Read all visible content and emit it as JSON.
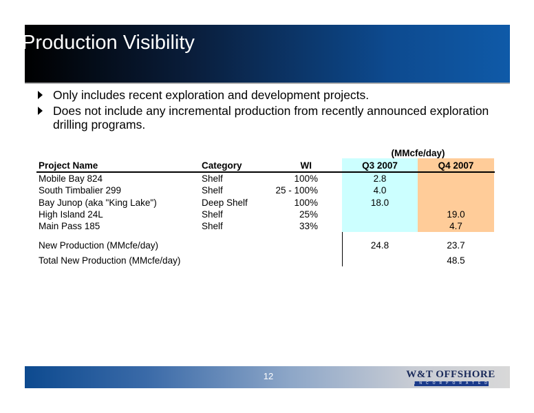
{
  "title": "Production Visibility",
  "bullets": [
    "Only includes recent exploration and development projects.",
    "Does not include any incremental production from recently announced exploration drilling programs."
  ],
  "table": {
    "unit_header": "(MMcfe/day)",
    "columns": [
      "Project Name",
      "Category",
      "WI",
      "Q3 2007",
      "Q4 2007"
    ],
    "rows": [
      {
        "name": "Mobile Bay 824",
        "category": "Shelf",
        "wi": "100%",
        "q3": "2.8",
        "q4": ""
      },
      {
        "name": "South Timbalier 299",
        "category": "Shelf",
        "wi": "25 - 100%",
        "q3": "4.0",
        "q4": ""
      },
      {
        "name": "Bay Junop (aka \"King Lake\")",
        "category": "Deep Shelf",
        "wi": "100%",
        "q3": "18.0",
        "q4": ""
      },
      {
        "name": "High Island 24L",
        "category": "Shelf",
        "wi": "25%",
        "q3": "",
        "q4": "19.0"
      },
      {
        "name": "Main Pass 185",
        "category": "Shelf",
        "wi": "33%",
        "q3": "",
        "q4": "4.7"
      }
    ],
    "new_production": {
      "label": "New Production (MMcfe/day)",
      "q3": "24.8",
      "q4": "23.7"
    },
    "total_new_production": {
      "label": "Total New Production (MMcfe/day)",
      "value": "48.5"
    }
  },
  "footer": {
    "page_number": "12",
    "logo_name": "W&T OFFSHORE",
    "logo_sub": "INCORPORATED"
  },
  "colors": {
    "q3_shade": "#ccffff",
    "q4_shade": "#ffcc99",
    "title_blue": "#0f5aa8"
  }
}
